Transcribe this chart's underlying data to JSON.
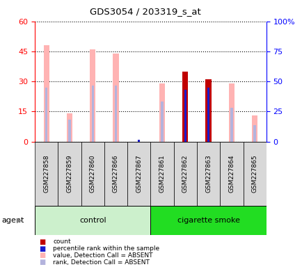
{
  "title": "GDS3054 / 203319_s_at",
  "samples": [
    "GSM227858",
    "GSM227859",
    "GSM227860",
    "GSM227866",
    "GSM227867",
    "GSM227861",
    "GSM227862",
    "GSM227863",
    "GSM227864",
    "GSM227865"
  ],
  "groups": [
    "control",
    "control",
    "control",
    "control",
    "control",
    "cigarette smoke",
    "cigarette smoke",
    "cigarette smoke",
    "cigarette smoke",
    "cigarette smoke"
  ],
  "value_absent": [
    48,
    14,
    46,
    44,
    0,
    29,
    0,
    0,
    29,
    13
  ],
  "rank_absent": [
    27,
    11,
    28,
    28,
    0,
    20,
    0,
    0,
    17,
    8
  ],
  "count_present": [
    0,
    0,
    0,
    0,
    0,
    0,
    35,
    31,
    0,
    0
  ],
  "rank_present": [
    0,
    0,
    0,
    0,
    1,
    0,
    26,
    27,
    0,
    0
  ],
  "ylim_left": [
    0,
    60
  ],
  "ylim_right": [
    0,
    100
  ],
  "yticks_left": [
    0,
    15,
    30,
    45,
    60
  ],
  "yticks_right": [
    0,
    25,
    50,
    75,
    100
  ],
  "yticklabels_right": [
    "0",
    "25",
    "50",
    "75",
    "100%"
  ],
  "color_count": "#c00000",
  "color_rank_present": "#1a1acc",
  "color_value_absent": "#ffb3b3",
  "color_rank_absent": "#b3b3dd",
  "color_control_bg": "#ccf0cc",
  "color_smoke_bg": "#22dd22",
  "color_sample_box": "#d8d8d8",
  "bar_width": 0.25,
  "thin_bar_width": 0.1
}
